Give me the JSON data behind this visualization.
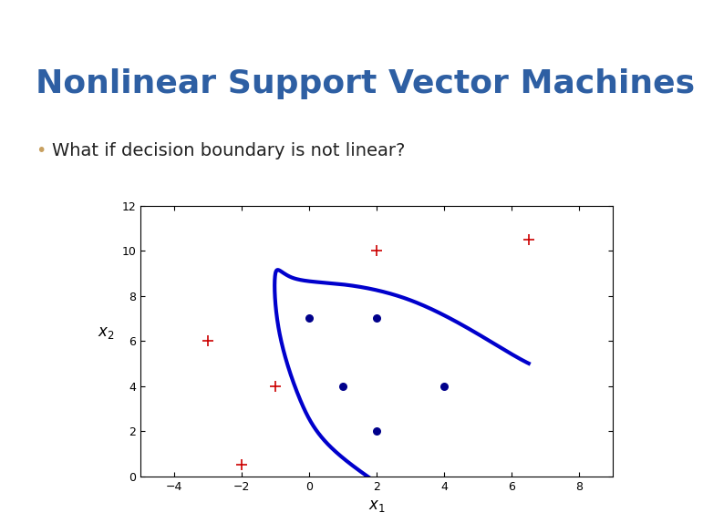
{
  "title": "Nonlinear Support Vector Machines",
  "bullet": "What if decision boundary is not linear?",
  "header_color": "#6b96c8",
  "title_color": "#2e5fa3",
  "bullet_color": "#222222",
  "bullet_dot_color": "#c8a060",
  "title_fontsize": 26,
  "bullet_fontsize": 14,
  "bg_color": "#ffffff",
  "blue_dots": [
    [
      0,
      7
    ],
    [
      2,
      7
    ],
    [
      1,
      4
    ],
    [
      4,
      4
    ],
    [
      2,
      2
    ]
  ],
  "red_crosses": [
    [
      -3,
      6
    ],
    [
      -2,
      0.5
    ],
    [
      -1,
      4
    ],
    [
      2,
      10
    ],
    [
      6.5,
      10.5
    ]
  ],
  "xlim": [
    -5,
    9
  ],
  "ylim": [
    0,
    12
  ],
  "xticks": [
    -4,
    -2,
    0,
    2,
    4,
    6,
    8
  ],
  "yticks": [
    0,
    2,
    4,
    6,
    8,
    10,
    12
  ],
  "xlabel": "x_1",
  "ylabel": "x_2",
  "curve_color": "#0000cc",
  "curve_linewidth": 3.0,
  "dot_color": "#00008b",
  "dot_size": 30,
  "cross_color": "#cc0000",
  "cross_size": 80,
  "cross_linewidth": 1.2
}
